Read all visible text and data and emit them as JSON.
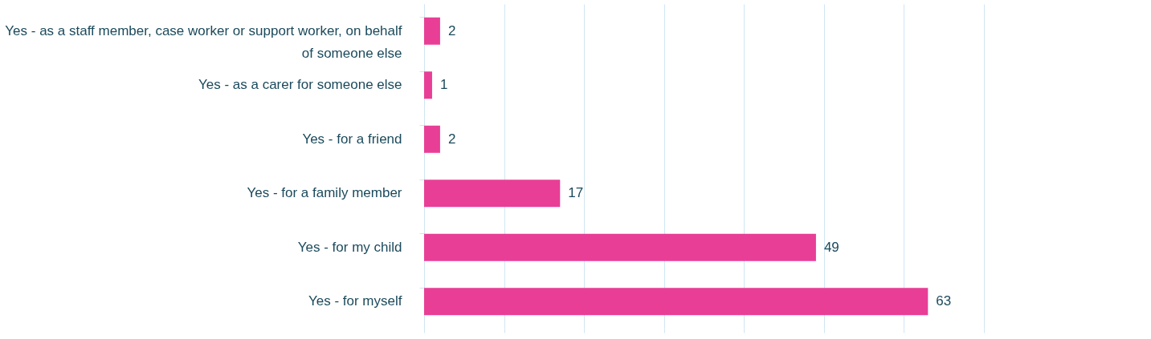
{
  "chart_data": {
    "type": "bar",
    "orientation": "horizontal",
    "categories": [
      "Yes - as a staff member, case worker or support worker, on behalf of someone else",
      "Yes - as a carer for someone else",
      "Yes - for a friend",
      "Yes - for a family member",
      "Yes - for my child",
      "Yes - for myself"
    ],
    "values": [
      2,
      1,
      2,
      17,
      49,
      63
    ],
    "color": "#e83e96",
    "xlim": [
      0,
      70
    ],
    "xticks": [
      {
        "value": 0,
        "label": null
      },
      {
        "value": 10,
        "label": null
      },
      {
        "value": 20,
        "label": null
      },
      {
        "value": 30,
        "label": null
      },
      {
        "value": 40,
        "label": null
      },
      {
        "value": 50,
        "label": null
      },
      {
        "value": 60,
        "label": null
      },
      {
        "value": 70,
        "label": null
      }
    ],
    "grid": "x",
    "tick_labels": "y",
    "data_labels": true
  }
}
